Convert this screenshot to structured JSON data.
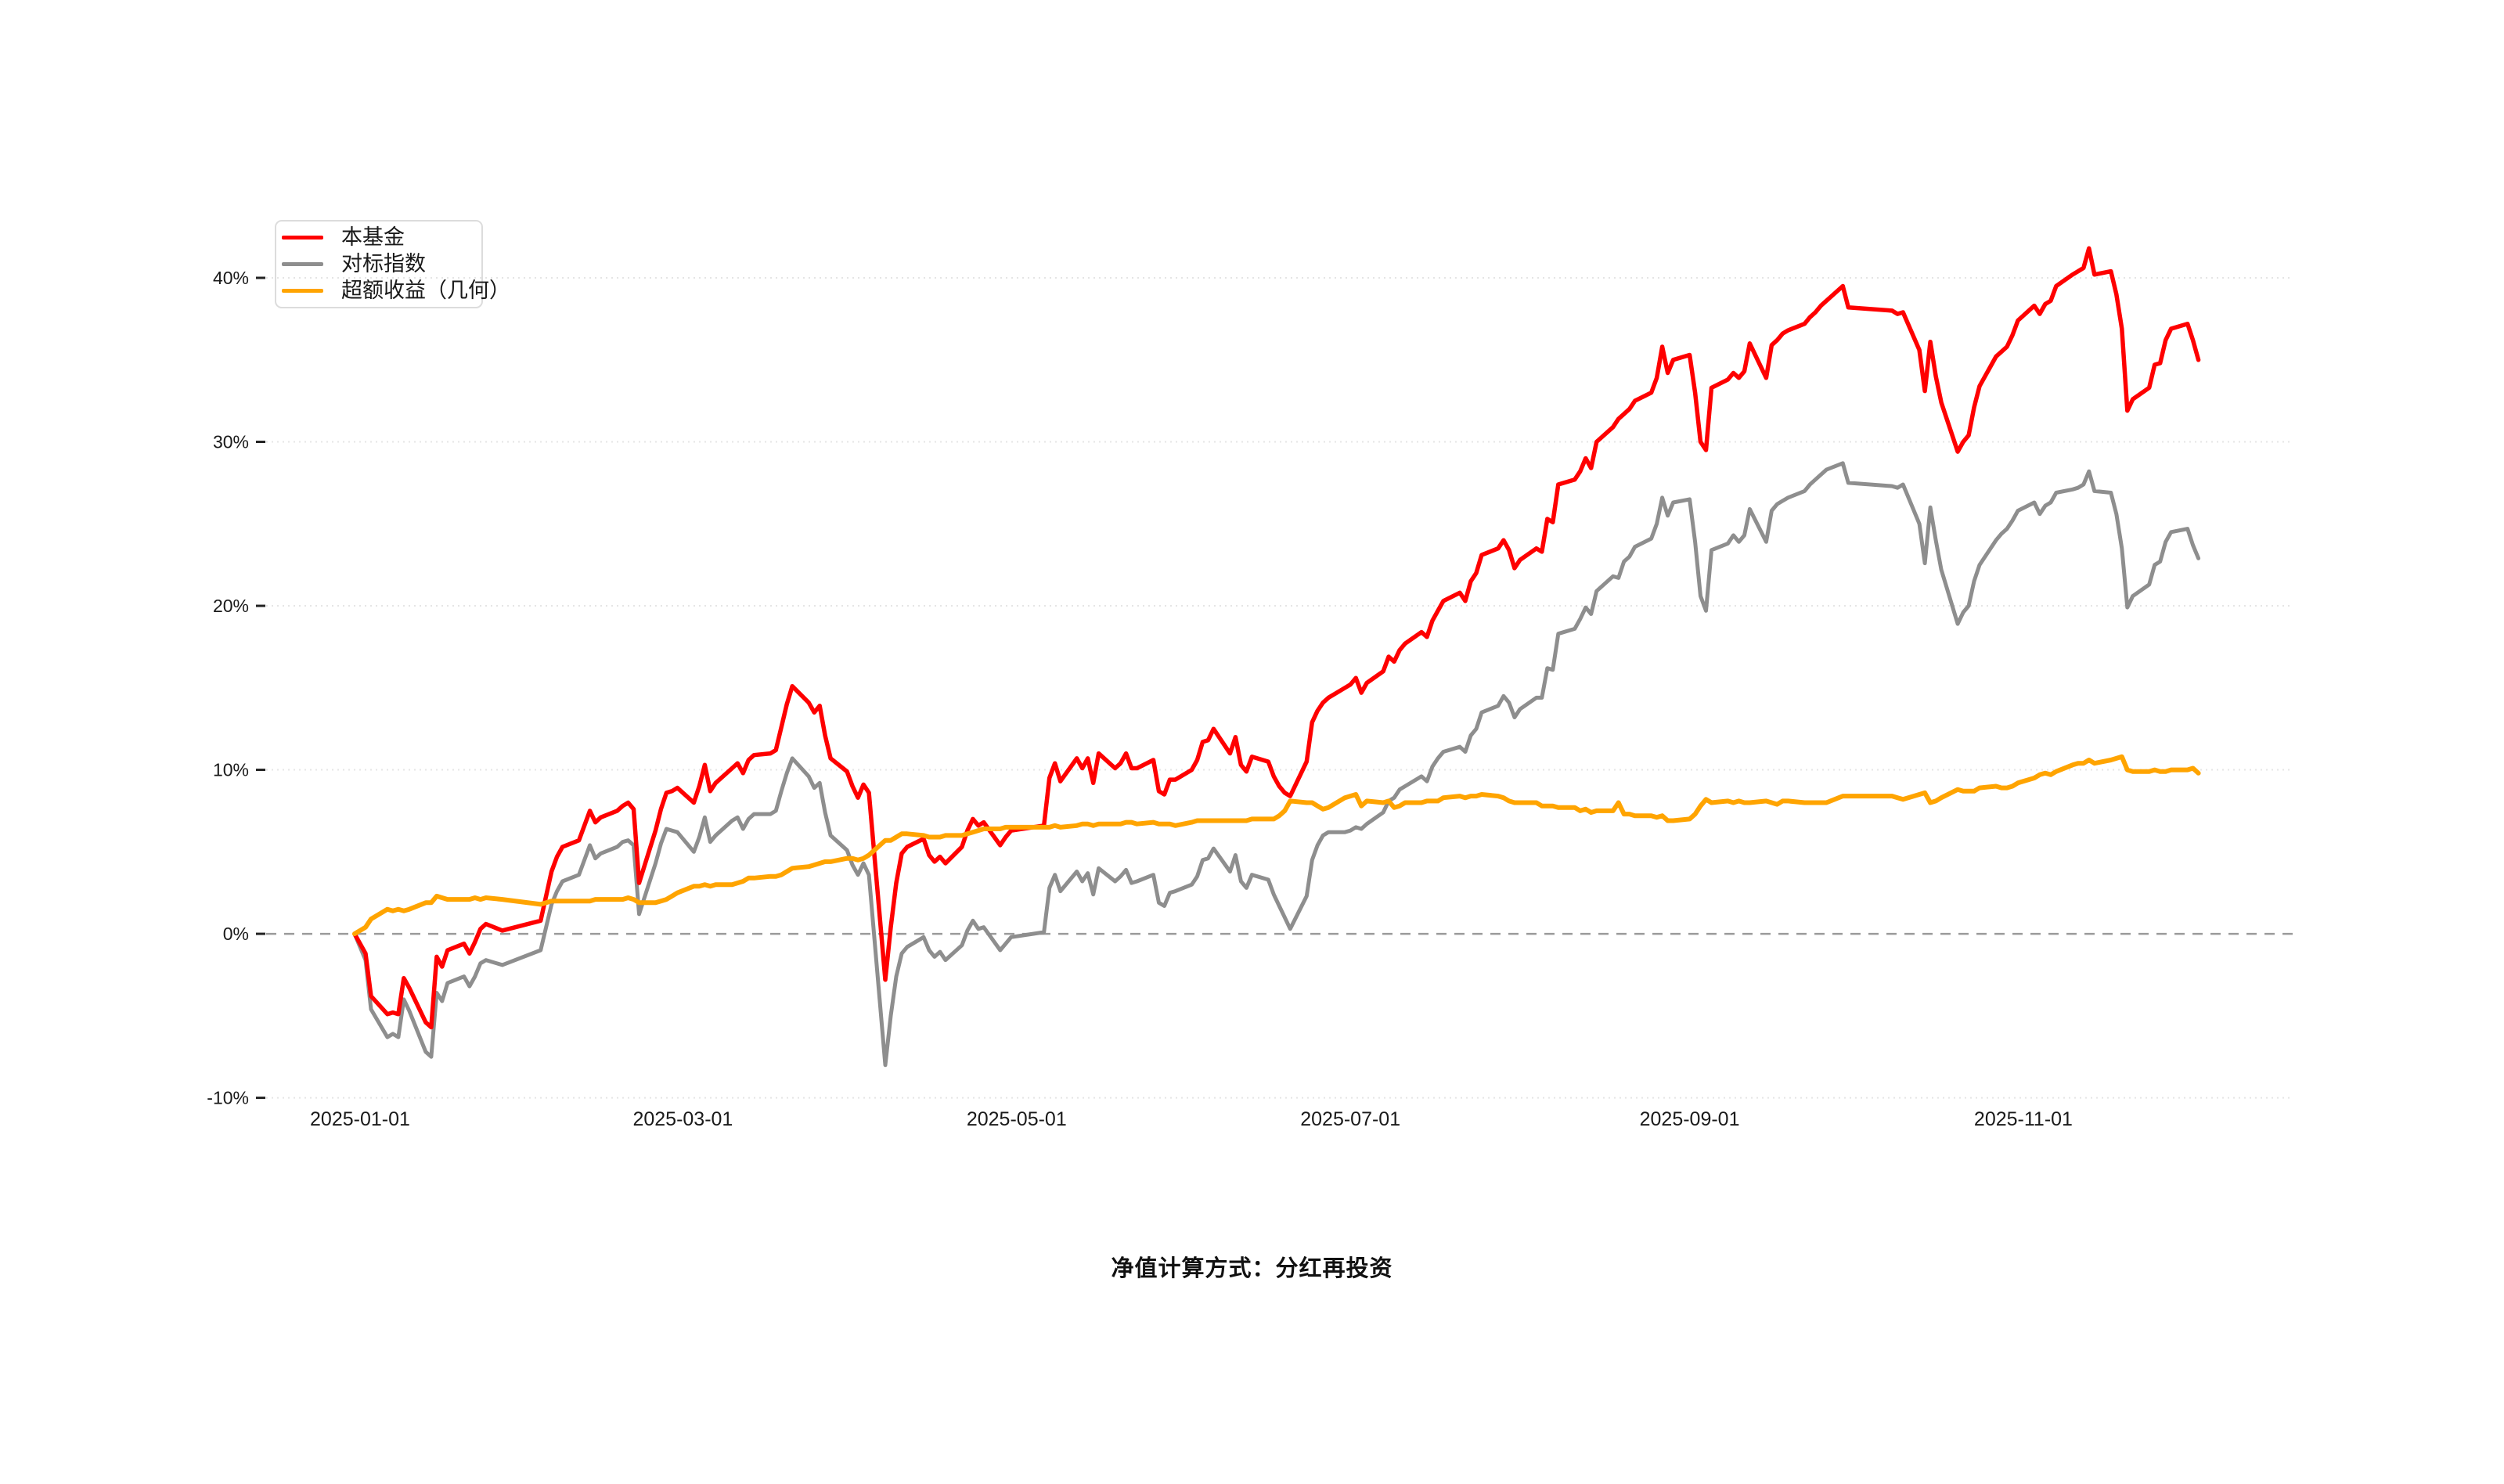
{
  "chart_data": {
    "type": "line",
    "title": "",
    "xlabel": "",
    "ylabel": "",
    "footnote": "净值计算方式：分红再投资",
    "legend_position": "top-left",
    "grid": "horizontal-dotted",
    "zero_line": "dashed",
    "background": "#ffffff",
    "axis_text_color": "#1a1a1a",
    "grid_color": "#e5e5e5",
    "zero_line_color": "#9b9b9b",
    "ylim": [
      -10,
      40
    ],
    "y_ticks": [
      {
        "value": 40,
        "label": "40%"
      },
      {
        "value": 30,
        "label": "30%"
      },
      {
        "value": 20,
        "label": "20%"
      },
      {
        "value": 10,
        "label": "10%"
      },
      {
        "value": 0,
        "label": "0%"
      },
      {
        "value": -10,
        "label": "-10%"
      }
    ],
    "x_ticks": [
      {
        "date": "2025-01-01",
        "label": "2025-01-01"
      },
      {
        "date": "2025-03-01",
        "label": "2025-03-01"
      },
      {
        "date": "2025-05-01",
        "label": "2025-05-01"
      },
      {
        "date": "2025-07-01",
        "label": "2025-07-01"
      },
      {
        "date": "2025-09-01",
        "label": "2025-09-01"
      },
      {
        "date": "2025-11-01",
        "label": "2025-11-01"
      }
    ],
    "x": [
      "2024-12-31",
      "2025-01-02",
      "2025-01-03",
      "2025-01-06",
      "2025-01-07",
      "2025-01-08",
      "2025-01-09",
      "2025-01-10",
      "2025-01-13",
      "2025-01-14",
      "2025-01-15",
      "2025-01-16",
      "2025-01-17",
      "2025-01-20",
      "2025-01-21",
      "2025-01-22",
      "2025-01-23",
      "2025-01-24",
      "2025-01-27",
      "2025-02-03",
      "2025-02-05",
      "2025-02-06",
      "2025-02-07",
      "2025-02-10",
      "2025-02-12",
      "2025-02-13",
      "2025-02-14",
      "2025-02-17",
      "2025-02-18",
      "2025-02-19",
      "2025-02-20",
      "2025-02-21",
      "2025-02-24",
      "2025-02-25",
      "2025-02-26",
      "2025-02-27",
      "2025-02-28",
      "2025-03-03",
      "2025-03-04",
      "2025-03-05",
      "2025-03-06",
      "2025-03-07",
      "2025-03-10",
      "2025-03-11",
      "2025-03-12",
      "2025-03-13",
      "2025-03-14",
      "2025-03-17",
      "2025-03-18",
      "2025-03-19",
      "2025-03-20",
      "2025-03-21",
      "2025-03-24",
      "2025-03-25",
      "2025-03-26",
      "2025-03-27",
      "2025-03-28",
      "2025-03-31",
      "2025-04-01",
      "2025-04-02",
      "2025-04-03",
      "2025-04-04",
      "2025-04-07",
      "2025-04-08",
      "2025-04-09",
      "2025-04-10",
      "2025-04-11",
      "2025-04-14",
      "2025-04-15",
      "2025-04-16",
      "2025-04-17",
      "2025-04-18",
      "2025-04-21",
      "2025-04-22",
      "2025-04-23",
      "2025-04-24",
      "2025-04-25",
      "2025-04-28",
      "2025-04-29",
      "2025-04-30",
      "2025-05-06",
      "2025-05-07",
      "2025-05-08",
      "2025-05-09",
      "2025-05-12",
      "2025-05-13",
      "2025-05-14",
      "2025-05-15",
      "2025-05-16",
      "2025-05-19",
      "2025-05-20",
      "2025-05-21",
      "2025-05-22",
      "2025-05-23",
      "2025-05-26",
      "2025-05-27",
      "2025-05-28",
      "2025-05-29",
      "2025-05-30",
      "2025-06-02",
      "2025-06-03",
      "2025-06-04",
      "2025-06-05",
      "2025-06-06",
      "2025-06-09",
      "2025-06-10",
      "2025-06-11",
      "2025-06-12",
      "2025-06-13",
      "2025-06-16",
      "2025-06-17",
      "2025-06-18",
      "2025-06-19",
      "2025-06-20",
      "2025-06-23",
      "2025-06-24",
      "2025-06-25",
      "2025-06-26",
      "2025-06-27",
      "2025-06-30",
      "2025-07-01",
      "2025-07-02",
      "2025-07-03",
      "2025-07-04",
      "2025-07-07",
      "2025-07-08",
      "2025-07-09",
      "2025-07-10",
      "2025-07-11",
      "2025-07-14",
      "2025-07-15",
      "2025-07-16",
      "2025-07-17",
      "2025-07-18",
      "2025-07-21",
      "2025-07-22",
      "2025-07-23",
      "2025-07-24",
      "2025-07-25",
      "2025-07-28",
      "2025-07-29",
      "2025-07-30",
      "2025-07-31",
      "2025-08-01",
      "2025-08-04",
      "2025-08-05",
      "2025-08-06",
      "2025-08-07",
      "2025-08-08",
      "2025-08-11",
      "2025-08-12",
      "2025-08-13",
      "2025-08-14",
      "2025-08-15",
      "2025-08-18",
      "2025-08-19",
      "2025-08-20",
      "2025-08-21",
      "2025-08-22",
      "2025-08-25",
      "2025-08-26",
      "2025-08-27",
      "2025-08-28",
      "2025-08-29",
      "2025-09-01",
      "2025-09-02",
      "2025-09-03",
      "2025-09-04",
      "2025-09-05",
      "2025-09-08",
      "2025-09-09",
      "2025-09-10",
      "2025-09-11",
      "2025-09-12",
      "2025-09-15",
      "2025-09-16",
      "2025-09-17",
      "2025-09-18",
      "2025-09-19",
      "2025-09-22",
      "2025-09-23",
      "2025-09-24",
      "2025-09-25",
      "2025-09-26",
      "2025-09-29",
      "2025-09-30",
      "2025-10-08",
      "2025-10-09",
      "2025-10-10",
      "2025-10-13",
      "2025-10-14",
      "2025-10-15",
      "2025-10-16",
      "2025-10-17",
      "2025-10-20",
      "2025-10-21",
      "2025-10-22",
      "2025-10-23",
      "2025-10-24",
      "2025-10-27",
      "2025-10-28",
      "2025-10-29",
      "2025-10-30",
      "2025-10-31",
      "2025-11-03",
      "2025-11-04",
      "2025-11-05",
      "2025-11-06",
      "2025-11-07",
      "2025-11-10",
      "2025-11-11",
      "2025-11-12",
      "2025-11-13",
      "2025-11-14",
      "2025-11-17",
      "2025-11-18",
      "2025-11-19",
      "2025-11-20",
      "2025-11-21",
      "2025-11-24",
      "2025-11-25",
      "2025-11-26",
      "2025-11-27",
      "2025-11-28",
      "2025-12-01",
      "2025-12-02",
      "2025-12-03"
    ],
    "series": [
      {
        "name": "本基金",
        "color": "#fe0000",
        "line_width": 5.5,
        "values": [
          0,
          -1.2,
          -3.8,
          -4.9,
          -4.8,
          -4.9,
          -2.7,
          -3.3,
          -5.4,
          -5.7,
          -1.4,
          -2,
          -1,
          -0.6,
          -1.2,
          -0.5,
          0.3,
          0.6,
          0.2,
          0.8,
          3.8,
          4.7,
          5.3,
          5.7,
          7.5,
          6.8,
          7.1,
          7.5,
          7.8,
          8,
          7.6,
          3.1,
          6.3,
          7.6,
          8.6,
          8.7,
          8.9,
          8,
          9,
          10.3,
          8.7,
          9.2,
          10.1,
          10.4,
          9.8,
          10.6,
          10.9,
          11,
          11.2,
          12.6,
          14,
          15.1,
          14.1,
          13.5,
          13.9,
          12.1,
          10.7,
          9.9,
          9,
          8.3,
          9.1,
          8.6,
          -2.8,
          0.4,
          3.1,
          4.9,
          5.3,
          5.8,
          4.8,
          4.4,
          4.7,
          4.3,
          5.3,
          6.3,
          7,
          6.6,
          6.8,
          5.4,
          5.9,
          6.3,
          6.6,
          9.5,
          10.4,
          9.3,
          10.7,
          10.1,
          10.7,
          9.2,
          11,
          10.1,
          10.4,
          11,
          10.1,
          10.1,
          10.6,
          8.7,
          8.5,
          9.4,
          9.4,
          10,
          10.6,
          11.7,
          11.8,
          12.5,
          11,
          12,
          10.3,
          9.9,
          10.8,
          10.5,
          9.6,
          9,
          8.6,
          8.4,
          10.5,
          12.9,
          13.6,
          14.1,
          14.4,
          15,
          15.2,
          15.6,
          14.7,
          15.3,
          16,
          16.9,
          16.6,
          17.3,
          17.7,
          18.4,
          18.1,
          19.1,
          19.7,
          20.3,
          20.8,
          20.3,
          21.5,
          22,
          23.1,
          23.5,
          24,
          23.4,
          22.3,
          22.8,
          23.5,
          23.3,
          25.3,
          25.1,
          27.4,
          27.7,
          28.2,
          29,
          28.4,
          30,
          30.9,
          31.4,
          31.7,
          32,
          32.5,
          33,
          33.9,
          35.8,
          34.2,
          35,
          35.3,
          33,
          30,
          29.5,
          33.3,
          33.8,
          34.2,
          33.9,
          34.3,
          36,
          33.9,
          35.9,
          36.2,
          36.6,
          36.8,
          37.2,
          37.6,
          37.9,
          38.3,
          38.6,
          39.5,
          38.2,
          38,
          37.8,
          37.9,
          35.6,
          33.1,
          36.1,
          34,
          32.4,
          29.4,
          30,
          30.4,
          32.1,
          33.4,
          35.2,
          35.5,
          35.8,
          36.5,
          37.4,
          38.3,
          37.8,
          38.4,
          38.6,
          39.5,
          40.2,
          40.4,
          40.6,
          41.8,
          40.2,
          40.4,
          39,
          36.9,
          31.9,
          32.6,
          33.3,
          34.7,
          34.8,
          36.2,
          36.9,
          37.2,
          36.2,
          35
        ]
      },
      {
        "name": "对标指数",
        "color": "#8e8e8e",
        "line_width": 5,
        "values": [
          0,
          -1.6,
          -4.6,
          -6.3,
          -6.1,
          -6.3,
          -4,
          -4.7,
          -7.2,
          -7.5,
          -3.6,
          -4.1,
          -3,
          -2.6,
          -3.2,
          -2.6,
          -1.8,
          -1.6,
          -1.9,
          -1,
          1.8,
          2.6,
          3.2,
          3.6,
          5.4,
          4.6,
          4.9,
          5.3,
          5.6,
          5.7,
          5.4,
          1.2,
          4.3,
          5.5,
          6.4,
          6.3,
          6.2,
          5,
          5.9,
          7.1,
          5.6,
          6,
          6.9,
          7.1,
          6.4,
          7,
          7.3,
          7.3,
          7.5,
          8.7,
          9.8,
          10.7,
          9.6,
          8.9,
          9.2,
          7.4,
          6,
          5.1,
          4.2,
          3.6,
          4.3,
          3.6,
          -8,
          -5,
          -2.6,
          -1.2,
          -0.8,
          -0.2,
          -1,
          -1.4,
          -1.1,
          -1.6,
          -0.7,
          0.2,
          0.8,
          0.3,
          0.4,
          -1,
          -0.6,
          -0.2,
          0.1,
          2.8,
          3.6,
          2.6,
          3.8,
          3.2,
          3.7,
          2.4,
          4,
          3.2,
          3.5,
          3.9,
          3.1,
          3.2,
          3.6,
          1.9,
          1.7,
          2.5,
          2.6,
          3,
          3.5,
          4.5,
          4.6,
          5.2,
          3.8,
          4.8,
          3.2,
          2.8,
          3.6,
          3.3,
          2.4,
          1.7,
          1,
          0.3,
          2.3,
          4.5,
          5.4,
          6,
          6.2,
          6.2,
          6.3,
          6.5,
          6.4,
          6.7,
          7.4,
          8.1,
          8.3,
          8.8,
          9,
          9.6,
          9.3,
          10.2,
          10.7,
          11.1,
          11.4,
          11.1,
          12.1,
          12.5,
          13.5,
          13.9,
          14.5,
          14.1,
          13.2,
          13.7,
          14.4,
          14.4,
          16.2,
          16.1,
          18.3,
          18.6,
          19.2,
          19.9,
          19.5,
          20.9,
          21.8,
          21.7,
          22.7,
          23,
          23.6,
          24.1,
          25,
          26.6,
          25.5,
          26.3,
          26.5,
          23.9,
          20.6,
          19.7,
          23.4,
          23.8,
          24.3,
          23.9,
          24.3,
          25.9,
          23.9,
          25.8,
          26.2,
          26.4,
          26.6,
          27,
          27.4,
          27.7,
          28,
          28.3,
          28.7,
          27.5,
          27.3,
          27.2,
          27.4,
          25,
          22.6,
          26,
          24,
          22.2,
          18.9,
          19.6,
          20,
          21.5,
          22.5,
          24,
          24.4,
          24.7,
          25.2,
          25.8,
          26.3,
          25.6,
          26.1,
          26.3,
          26.9,
          27.1,
          27.2,
          27.4,
          28.2,
          27,
          26.9,
          25.6,
          23.5,
          19.9,
          20.6,
          21.3,
          22.5,
          22.7,
          23.9,
          24.5,
          24.7,
          23.7,
          22.9
        ]
      },
      {
        "name": "超额收益（几何）",
        "color": "#ffa400",
        "line_width": 6,
        "values": [
          0,
          0.4,
          0.9,
          1.5,
          1.4,
          1.5,
          1.4,
          1.5,
          1.9,
          1.9,
          2.3,
          2.2,
          2.1,
          2.1,
          2.1,
          2.2,
          2.1,
          2.2,
          2.1,
          1.8,
          2,
          2,
          2,
          2,
          2,
          2.1,
          2.1,
          2.1,
          2.1,
          2.2,
          2.1,
          1.9,
          1.9,
          2,
          2.1,
          2.3,
          2.5,
          2.9,
          2.9,
          3,
          2.9,
          3,
          3,
          3.1,
          3.2,
          3.4,
          3.4,
          3.5,
          3.5,
          3.6,
          3.8,
          4,
          4.1,
          4.2,
          4.3,
          4.4,
          4.4,
          4.6,
          4.6,
          4.5,
          4.6,
          4.8,
          5.7,
          5.7,
          5.9,
          6.1,
          6.1,
          6,
          5.9,
          5.9,
          5.9,
          6,
          6,
          6.1,
          6.2,
          6.3,
          6.4,
          6.4,
          6.5,
          6.5,
          6.5,
          6.5,
          6.6,
          6.5,
          6.6,
          6.7,
          6.7,
          6.6,
          6.7,
          6.7,
          6.7,
          6.8,
          6.8,
          6.7,
          6.8,
          6.7,
          6.7,
          6.7,
          6.6,
          6.8,
          6.9,
          6.9,
          6.9,
          6.9,
          6.9,
          6.9,
          6.9,
          6.9,
          7,
          7,
          7,
          7.2,
          7.5,
          8.1,
          8,
          8,
          7.8,
          7.6,
          7.7,
          8.3,
          8.4,
          8.5,
          7.8,
          8.1,
          8,
          8.1,
          7.7,
          7.8,
          8,
          8,
          8.1,
          8.1,
          8.1,
          8.3,
          8.4,
          8.3,
          8.4,
          8.4,
          8.5,
          8.4,
          8.3,
          8.1,
          8,
          8,
          8,
          7.8,
          7.8,
          7.8,
          7.7,
          7.7,
          7.5,
          7.6,
          7.4,
          7.5,
          7.5,
          8,
          7.3,
          7.3,
          7.2,
          7.2,
          7.1,
          7.2,
          6.9,
          6.9,
          7,
          7.3,
          7.8,
          8.2,
          8,
          8.1,
          8,
          8.1,
          8,
          8,
          8.1,
          8,
          7.9,
          8.1,
          8.1,
          8,
          8,
          8,
          8,
          8,
          8.4,
          8.4,
          8.4,
          8.3,
          8.2,
          8.5,
          8.6,
          8,
          8.1,
          8.3,
          8.8,
          8.7,
          8.7,
          8.7,
          8.9,
          9,
          8.9,
          8.9,
          9,
          9.2,
          9.5,
          9.7,
          9.8,
          9.7,
          9.9,
          10.3,
          10.4,
          10.4,
          10.6,
          10.4,
          10.6,
          10.7,
          10.8,
          10,
          9.9,
          9.9,
          10,
          9.9,
          9.9,
          10,
          10,
          10.1,
          9.8
        ]
      }
    ]
  }
}
